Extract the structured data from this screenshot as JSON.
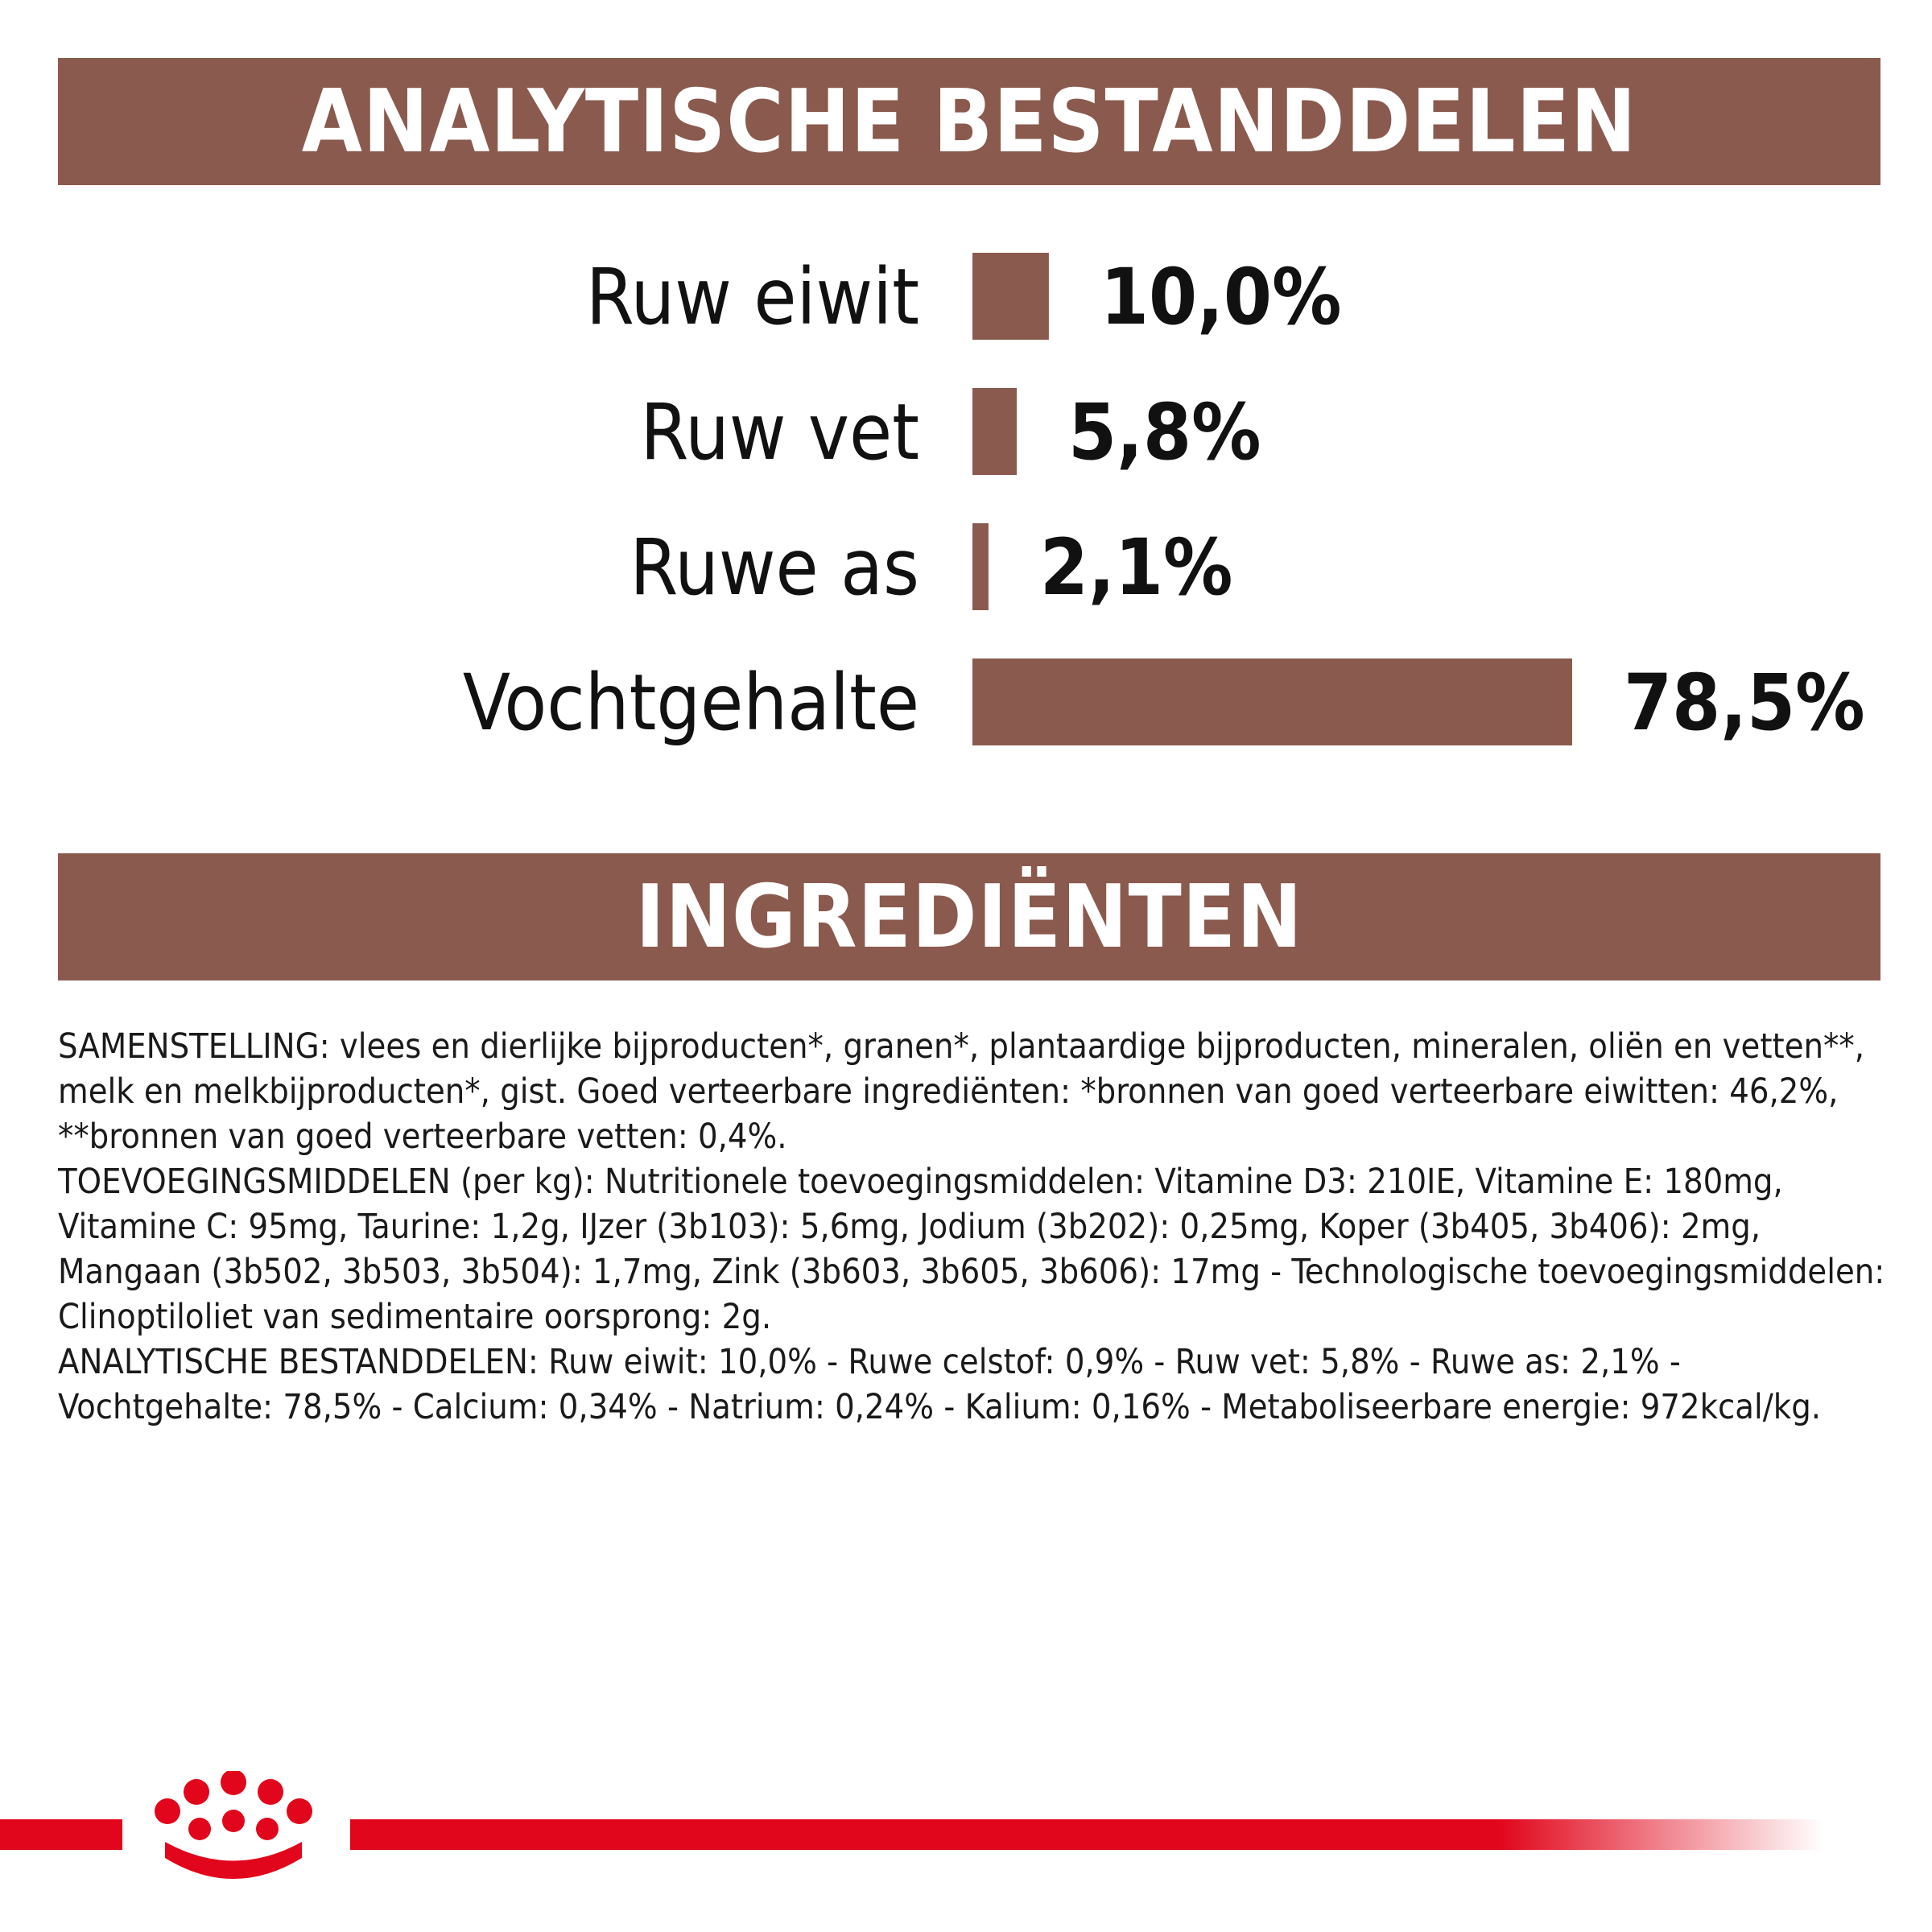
{
  "colors": {
    "banner": "#8a5a4e",
    "bar": "#8a5a4e",
    "brand_red": "#e1061b",
    "text": "#111111"
  },
  "analytics": {
    "title": "ANALYTISCHE BESTANDDELEN"
  },
  "ingredients": {
    "title": "INGREDIËNTEN",
    "paragraphs": [
      "SAMENSTELLING: vlees en dierlijke bijproducten*, granen*, plantaardige bijproducten, mineralen, oliën en vetten**, melk en melkbijproducten*, gist. Goed verteerbare ingrediënten: *bronnen van goed verteerbare eiwitten: 46,2%, **bronnen van goed verteerbare vetten: 0,4%.",
      "TOEVOEGINGSMIDDELEN (per kg): Nutritionele toevoegingsmiddelen: Vitamine D3: 210IE, Vitamine E: 180mg, Vitamine C: 95mg, Taurine: 1,2g, IJzer (3b103): 5,6mg, Jodium (3b202): 0,25mg, Koper (3b405, 3b406): 2mg, Mangaan (3b502, 3b503, 3b504): 1,7mg, Zink (3b603, 3b605, 3b606): 17mg - Technologische toevoegingsmiddelen: Clinoptiloliet van sedimentaire oorsprong: 2g.",
      "ANALYTISCHE BESTANDDELEN: Ruw eiwit: 10,0% - Ruwe celstof: 0,9% - Ruw vet: 5,8% - Ruwe as: 2,1% - Vochtgehalte: 78,5% - Calcium: 0,34% - Natrium: 0,24% - Kalium: 0,16% - Metaboliseerbare energie: 972kcal/kg."
    ]
  },
  "logo": {
    "icon": "royal-canin-crown-logo"
  },
  "chart_data": {
    "type": "bar",
    "orientation": "horizontal",
    "title": "ANALYTISCHE BESTANDDELEN",
    "categories": [
      "Ruw eiwit",
      "Ruw vet",
      "Ruwe as",
      "Vochtgehalte"
    ],
    "values": [
      10.0,
      5.8,
      2.1,
      78.5
    ],
    "value_labels": [
      "10,0%",
      "5,8%",
      "2,1%",
      "78,5%"
    ],
    "xlim": [
      0,
      78.5
    ],
    "grid": false,
    "axes_visible": false
  }
}
